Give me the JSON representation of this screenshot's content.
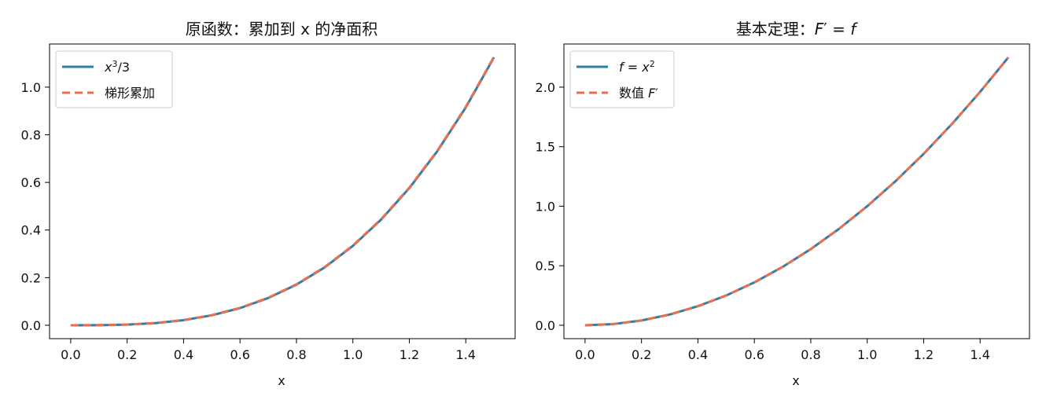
{
  "colors": {
    "blue": "#2E7FA8",
    "orange": "#E8704F",
    "axes": "#000000",
    "legend_border": "#cccccc"
  },
  "chart_data": [
    {
      "type": "line",
      "title": "原函数：累加到 x 的净面积",
      "xlabel": "x",
      "ylabel": "",
      "xlim": [
        -0.075,
        1.575
      ],
      "ylim": [
        -0.05625,
        1.18125
      ],
      "xticks": [
        0.0,
        0.2,
        0.4,
        0.6,
        0.8,
        1.0,
        1.2,
        1.4
      ],
      "xtick_labels": [
        "0.0",
        "0.2",
        "0.4",
        "0.6",
        "0.8",
        "1.0",
        "1.2",
        "1.4"
      ],
      "yticks": [
        0.0,
        0.2,
        0.4,
        0.6,
        0.8,
        1.0
      ],
      "ytick_labels": [
        "0.0",
        "0.2",
        "0.4",
        "0.6",
        "0.8",
        "1.0"
      ],
      "legend": {
        "position": "top-left"
      },
      "x": [
        0.0,
        0.1,
        0.2,
        0.3,
        0.4,
        0.5,
        0.6,
        0.7,
        0.8,
        0.9,
        1.0,
        1.1,
        1.2,
        1.3,
        1.4,
        1.5
      ],
      "series": [
        {
          "name": "x³/3",
          "name_parts": [
            "x",
            "3",
            "/3"
          ],
          "style": "solid",
          "color": "#2E7FA8",
          "values": [
            0.0,
            0.00033,
            0.00267,
            0.009,
            0.02133,
            0.04167,
            0.072,
            0.11433,
            0.17067,
            0.243,
            0.33333,
            0.44367,
            0.576,
            0.73233,
            0.91467,
            1.125
          ]
        },
        {
          "name": "梯形累加",
          "style": "dashed",
          "color": "#E8704F",
          "values": [
            0.0,
            0.0005,
            0.003,
            0.0095,
            0.022,
            0.0425,
            0.073,
            0.1155,
            0.172,
            0.2445,
            0.335,
            0.4455,
            0.578,
            0.7345,
            0.917,
            1.1275
          ]
        }
      ]
    },
    {
      "type": "line",
      "title": "基本定理：F′ = f",
      "title_parts": [
        "基本定理：",
        "F",
        "′ = ",
        "f"
      ],
      "xlabel": "x",
      "ylabel": "",
      "xlim": [
        -0.075,
        1.575
      ],
      "ylim": [
        -0.1125,
        2.3625
      ],
      "xticks": [
        0.0,
        0.2,
        0.4,
        0.6,
        0.8,
        1.0,
        1.2,
        1.4
      ],
      "xtick_labels": [
        "0.0",
        "0.2",
        "0.4",
        "0.6",
        "0.8",
        "1.0",
        "1.2",
        "1.4"
      ],
      "yticks": [
        0.0,
        0.5,
        1.0,
        1.5,
        2.0
      ],
      "ytick_labels": [
        "0.0",
        "0.5",
        "1.0",
        "1.5",
        "2.0"
      ],
      "legend": {
        "position": "top-left"
      },
      "x": [
        0.0,
        0.1,
        0.2,
        0.3,
        0.4,
        0.5,
        0.6,
        0.7,
        0.8,
        0.9,
        1.0,
        1.1,
        1.2,
        1.3,
        1.4,
        1.5
      ],
      "series": [
        {
          "name": "f = x²",
          "name_parts": [
            "f",
            " = ",
            "x",
            "2"
          ],
          "style": "solid",
          "color": "#2E7FA8",
          "values": [
            0.0,
            0.01,
            0.04,
            0.09,
            0.16,
            0.25,
            0.36,
            0.49,
            0.64,
            0.81,
            1.0,
            1.21,
            1.44,
            1.69,
            1.96,
            2.25
          ]
        },
        {
          "name": "数值 F′",
          "name_parts": [
            "数值 ",
            "F",
            "′"
          ],
          "style": "dashed",
          "color": "#E8704F",
          "values": [
            0.0,
            0.01,
            0.04,
            0.09,
            0.16,
            0.25,
            0.36,
            0.49,
            0.64,
            0.81,
            1.0,
            1.21,
            1.44,
            1.69,
            1.96,
            2.25
          ]
        }
      ]
    }
  ]
}
